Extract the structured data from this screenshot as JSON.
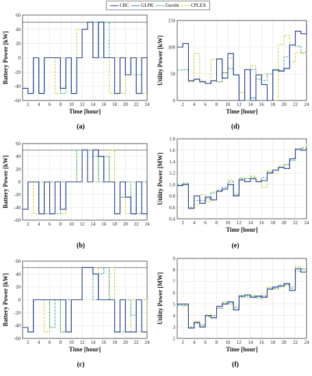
{
  "legend": [
    {
      "name": "CBC",
      "color": "#2b3a8c",
      "style": "solid"
    },
    {
      "name": "GLPK",
      "color": "#3b7fd4",
      "style": "solid"
    },
    {
      "name": "Gurobi",
      "color": "#2aa198",
      "style": "dashed"
    },
    {
      "name": "CPLEX",
      "color": "#c8c820",
      "style": "dashed"
    }
  ],
  "panel_labels": {
    "a": "(a)",
    "b": "(b)",
    "c": "(c)",
    "d": "(d)",
    "e": "(e)",
    "f": "(f)"
  },
  "chart_data": [
    {
      "id": "a",
      "type": "line",
      "step": true,
      "xlabel": "Time [hour]",
      "ylabel": "Battery Power [kW]",
      "xlim": [
        1,
        24
      ],
      "ylim": [
        -60,
        60
      ],
      "xticks": [
        2,
        4,
        6,
        8,
        10,
        12,
        14,
        16,
        18,
        20,
        22,
        24
      ],
      "yticks": [
        -60,
        -40,
        -20,
        0,
        20,
        40,
        60
      ],
      "reference_line": 50,
      "grid": true,
      "x": [
        1,
        2,
        3,
        4,
        5,
        6,
        7,
        8,
        9,
        10,
        11,
        12,
        13,
        14,
        15,
        16,
        17,
        18,
        19,
        20,
        21,
        22,
        23,
        24
      ],
      "series": [
        {
          "name": "CBC",
          "values": [
            -43,
            -50,
            0,
            -50,
            0,
            0,
            0,
            -43,
            0,
            -50,
            0,
            40,
            50,
            0,
            50,
            0,
            0,
            -50,
            0,
            -24,
            0,
            -50,
            0,
            -50
          ]
        },
        {
          "name": "GLPK",
          "values": [
            -43,
            -50,
            0,
            -50,
            0,
            0,
            0,
            -43,
            0,
            -50,
            0,
            40,
            50,
            0,
            50,
            0,
            0,
            -50,
            0,
            -24,
            0,
            -50,
            0,
            -50
          ]
        },
        {
          "name": "Gurobi",
          "values": [
            -43,
            -50,
            0,
            -50,
            0,
            0,
            0,
            -50,
            0,
            -50,
            0,
            40,
            50,
            50,
            0,
            50,
            0,
            -50,
            0,
            -24,
            0,
            -24,
            0,
            -50
          ]
        },
        {
          "name": "CPLEX",
          "values": [
            -43,
            -50,
            0,
            -50,
            0,
            0,
            -50,
            0,
            0,
            -50,
            40,
            40,
            50,
            0,
            50,
            0,
            -50,
            0,
            -50,
            0,
            -24,
            0,
            -50,
            -50
          ]
        }
      ]
    },
    {
      "id": "b",
      "type": "line",
      "step": true,
      "xlabel": "",
      "ylabel": "Battery Power [kW]",
      "xlim": [
        1,
        24
      ],
      "ylim": [
        -60,
        60
      ],
      "xticks": [
        2,
        4,
        6,
        8,
        10,
        12,
        14,
        16,
        18,
        20,
        22,
        24
      ],
      "yticks": [
        -60,
        -40,
        -20,
        0,
        20,
        40,
        60
      ],
      "reference_line": 50,
      "grid": true,
      "x": [
        1,
        2,
        3,
        4,
        5,
        6,
        7,
        8,
        9,
        10,
        11,
        12,
        13,
        14,
        15,
        16,
        17,
        18,
        19,
        20,
        21,
        22,
        23,
        24
      ],
      "series": [
        {
          "name": "CBC",
          "values": [
            -43,
            0,
            0,
            -50,
            0,
            -50,
            0,
            -43,
            0,
            0,
            0,
            50,
            0,
            50,
            40,
            0,
            0,
            -50,
            0,
            -24,
            -50,
            0,
            -50,
            0
          ]
        },
        {
          "name": "GLPK",
          "values": [
            -43,
            0,
            0,
            -50,
            0,
            -50,
            0,
            -43,
            0,
            0,
            0,
            50,
            0,
            50,
            40,
            0,
            0,
            -50,
            0,
            -24,
            -50,
            0,
            -50,
            0
          ]
        },
        {
          "name": "Gurobi",
          "values": [
            -43,
            0,
            0,
            -50,
            -50,
            0,
            -50,
            0,
            0,
            0,
            50,
            50,
            50,
            40,
            0,
            40,
            0,
            -50,
            -24,
            0,
            -50,
            -50,
            0,
            -50
          ]
        },
        {
          "name": "CPLEX",
          "values": [
            -43,
            0,
            -50,
            0,
            -50,
            -50,
            0,
            -50,
            0,
            0,
            50,
            50,
            50,
            0,
            40,
            0,
            50,
            -50,
            -24,
            -50,
            0,
            -50,
            -50,
            -24
          ]
        }
      ]
    },
    {
      "id": "c",
      "type": "line",
      "step": true,
      "xlabel": "Time [hour]",
      "ylabel": "Battery Power [kW]",
      "xlim": [
        1,
        24
      ],
      "ylim": [
        -60,
        60
      ],
      "xticks": [
        2,
        4,
        6,
        8,
        10,
        12,
        14,
        16,
        18,
        20,
        22,
        24
      ],
      "yticks": [
        -60,
        -40,
        -20,
        0,
        20,
        40,
        60
      ],
      "reference_line": 50,
      "grid": true,
      "x": [
        1,
        2,
        3,
        4,
        5,
        6,
        7,
        8,
        9,
        10,
        11,
        12,
        13,
        14,
        15,
        16,
        17,
        18,
        19,
        20,
        21,
        22,
        23,
        24
      ],
      "series": [
        {
          "name": "CBC",
          "values": [
            -43,
            -50,
            0,
            0,
            0,
            0,
            0,
            0,
            -50,
            0,
            0,
            50,
            50,
            40,
            0,
            0,
            0,
            -50,
            0,
            -50,
            -50,
            0,
            -50,
            -50
          ]
        },
        {
          "name": "GLPK",
          "values": [
            -43,
            -50,
            0,
            0,
            0,
            0,
            0,
            0,
            -50,
            0,
            0,
            50,
            50,
            40,
            0,
            0,
            0,
            -50,
            0,
            -50,
            -50,
            0,
            -50,
            -50
          ]
        },
        {
          "name": "Gurobi",
          "values": [
            -43,
            -50,
            0,
            0,
            0,
            -43,
            0,
            -50,
            0,
            0,
            0,
            50,
            50,
            0,
            40,
            50,
            0,
            -50,
            -50,
            0,
            -24,
            0,
            -50,
            -50
          ]
        },
        {
          "name": "CPLEX",
          "values": [
            -43,
            -50,
            0,
            0,
            -50,
            0,
            0,
            -50,
            -50,
            0,
            0,
            50,
            50,
            50,
            0,
            0,
            50,
            -50,
            0,
            -50,
            0,
            -50,
            0,
            -50
          ]
        }
      ]
    },
    {
      "id": "d",
      "type": "line",
      "step": true,
      "xlabel": "Time [hour]",
      "ylabel": "Utility Power [kW]",
      "xlim": [
        1,
        24
      ],
      "ylim": [
        0,
        150
      ],
      "xticks": [
        2,
        4,
        6,
        8,
        10,
        12,
        14,
        16,
        18,
        20,
        22,
        24
      ],
      "yticks": [
        0,
        50,
        100,
        150
      ],
      "grid": true,
      "x": [
        1,
        2,
        3,
        4,
        5,
        6,
        7,
        8,
        9,
        10,
        11,
        12,
        13,
        14,
        15,
        16,
        17,
        18,
        19,
        20,
        21,
        22,
        23,
        24
      ],
      "series": [
        {
          "name": "CBC",
          "values": [
            100,
            107,
            37,
            40,
            35,
            32,
            37,
            78,
            42,
            88,
            48,
            0,
            58,
            0,
            48,
            30,
            0,
            57,
            55,
            60,
            104,
            130,
            125,
            143
          ]
        },
        {
          "name": "GLPK",
          "values": [
            100,
            107,
            37,
            40,
            35,
            32,
            37,
            78,
            42,
            88,
            48,
            0,
            58,
            5,
            48,
            30,
            0,
            57,
            55,
            60,
            104,
            130,
            125,
            143
          ]
        },
        {
          "name": "Gurobi",
          "values": [
            57,
            58,
            37,
            40,
            35,
            32,
            37,
            35,
            52,
            60,
            48,
            0,
            0,
            58,
            40,
            37,
            50,
            58,
            57,
            82,
            104,
            102,
            90,
            88
          ]
        },
        {
          "name": "CPLEX",
          "values": [
            57,
            58,
            35,
            88,
            37,
            32,
            78,
            35,
            52,
            80,
            48,
            15,
            0,
            65,
            40,
            48,
            50,
            0,
            105,
            122,
            72,
            90,
            88,
            90
          ]
        }
      ]
    },
    {
      "id": "e",
      "type": "line",
      "step": true,
      "xlabel": "Time [hour]",
      "ylabel": "Utility Power [MW]",
      "xlim": [
        1,
        24
      ],
      "ylim": [
        0.4,
        1.8
      ],
      "xticks": [
        2,
        4,
        6,
        8,
        10,
        12,
        14,
        16,
        18,
        20,
        22,
        24
      ],
      "yticks": [
        0.4,
        0.6,
        0.8,
        1.0,
        1.2,
        1.4,
        1.6,
        1.8
      ],
      "grid": true,
      "x": [
        1,
        2,
        3,
        4,
        5,
        6,
        7,
        8,
        9,
        10,
        11,
        12,
        13,
        14,
        15,
        16,
        17,
        18,
        19,
        20,
        21,
        22,
        23,
        24
      ],
      "series": [
        {
          "name": "CBC",
          "values": [
            0.98,
            1.0,
            0.58,
            0.8,
            0.67,
            0.78,
            0.73,
            0.88,
            0.92,
            1.0,
            0.8,
            1.08,
            1.05,
            1.1,
            1.05,
            1.07,
            1.2,
            1.25,
            1.3,
            1.28,
            1.45,
            1.62,
            1.6,
            1.63
          ]
        },
        {
          "name": "GLPK",
          "values": [
            0.98,
            1.0,
            0.58,
            0.8,
            0.67,
            0.78,
            0.73,
            0.88,
            0.92,
            1.0,
            0.8,
            1.08,
            1.05,
            1.1,
            1.05,
            1.07,
            1.2,
            1.25,
            1.3,
            1.28,
            1.45,
            1.62,
            1.6,
            1.63
          ]
        },
        {
          "name": "Gurobi",
          "values": [
            1.0,
            1.02,
            0.6,
            0.72,
            0.72,
            0.75,
            0.85,
            0.9,
            0.95,
            1.05,
            0.82,
            1.1,
            1.1,
            1.12,
            1.05,
            1.12,
            1.22,
            1.25,
            1.3,
            1.35,
            1.42,
            1.6,
            1.63,
            1.68
          ]
        },
        {
          "name": "CPLEX",
          "values": [
            1.0,
            1.02,
            0.6,
            0.65,
            0.82,
            0.7,
            0.87,
            0.9,
            0.95,
            1.08,
            0.85,
            1.12,
            1.1,
            1.15,
            1.08,
            0.95,
            1.25,
            1.2,
            1.33,
            1.35,
            1.45,
            1.62,
            1.65,
            1.7
          ]
        }
      ]
    },
    {
      "id": "f",
      "type": "line",
      "step": true,
      "xlabel": "Time [hour]",
      "ylabel": "Utility Power [MW]",
      "xlim": [
        1,
        24
      ],
      "ylim": [
        2,
        9
      ],
      "xticks": [
        2,
        4,
        6,
        8,
        10,
        12,
        14,
        16,
        18,
        20,
        22,
        24
      ],
      "yticks": [
        2,
        3,
        4,
        5,
        6,
        7,
        8,
        9
      ],
      "grid": true,
      "x": [
        1,
        2,
        3,
        4,
        5,
        6,
        7,
        8,
        9,
        10,
        11,
        12,
        13,
        14,
        15,
        16,
        17,
        18,
        19,
        20,
        21,
        22,
        23,
        24
      ],
      "series": [
        {
          "name": "CBC",
          "values": [
            5.0,
            5.0,
            2.9,
            3.4,
            3.0,
            4.0,
            3.8,
            4.8,
            5.0,
            5.2,
            4.5,
            5.7,
            5.8,
            5.6,
            5.7,
            5.6,
            6.3,
            6.5,
            6.6,
            6.8,
            6.2,
            8.1,
            7.8,
            8.0
          ]
        },
        {
          "name": "GLPK",
          "values": [
            5.0,
            5.0,
            2.9,
            3.4,
            3.0,
            4.0,
            3.8,
            4.8,
            5.0,
            5.2,
            4.5,
            5.7,
            5.8,
            5.6,
            5.7,
            5.6,
            6.3,
            6.5,
            6.6,
            6.8,
            6.2,
            8.1,
            7.8,
            8.0
          ]
        },
        {
          "name": "Gurobi",
          "values": [
            4.9,
            4.9,
            3.0,
            3.3,
            3.2,
            3.9,
            4.0,
            4.6,
            5.1,
            5.1,
            4.7,
            5.6,
            5.7,
            5.7,
            5.6,
            5.7,
            6.4,
            6.4,
            6.5,
            6.7,
            6.4,
            7.9,
            8.1,
            7.8
          ]
        },
        {
          "name": "CPLEX",
          "values": [
            4.9,
            4.8,
            3.0,
            3.5,
            3.1,
            4.1,
            3.9,
            4.7,
            5.2,
            5.0,
            4.8,
            5.8,
            5.6,
            5.8,
            5.5,
            5.8,
            6.5,
            6.3,
            6.7,
            6.6,
            6.5,
            8.3,
            8.0,
            7.7
          ]
        }
      ]
    }
  ]
}
